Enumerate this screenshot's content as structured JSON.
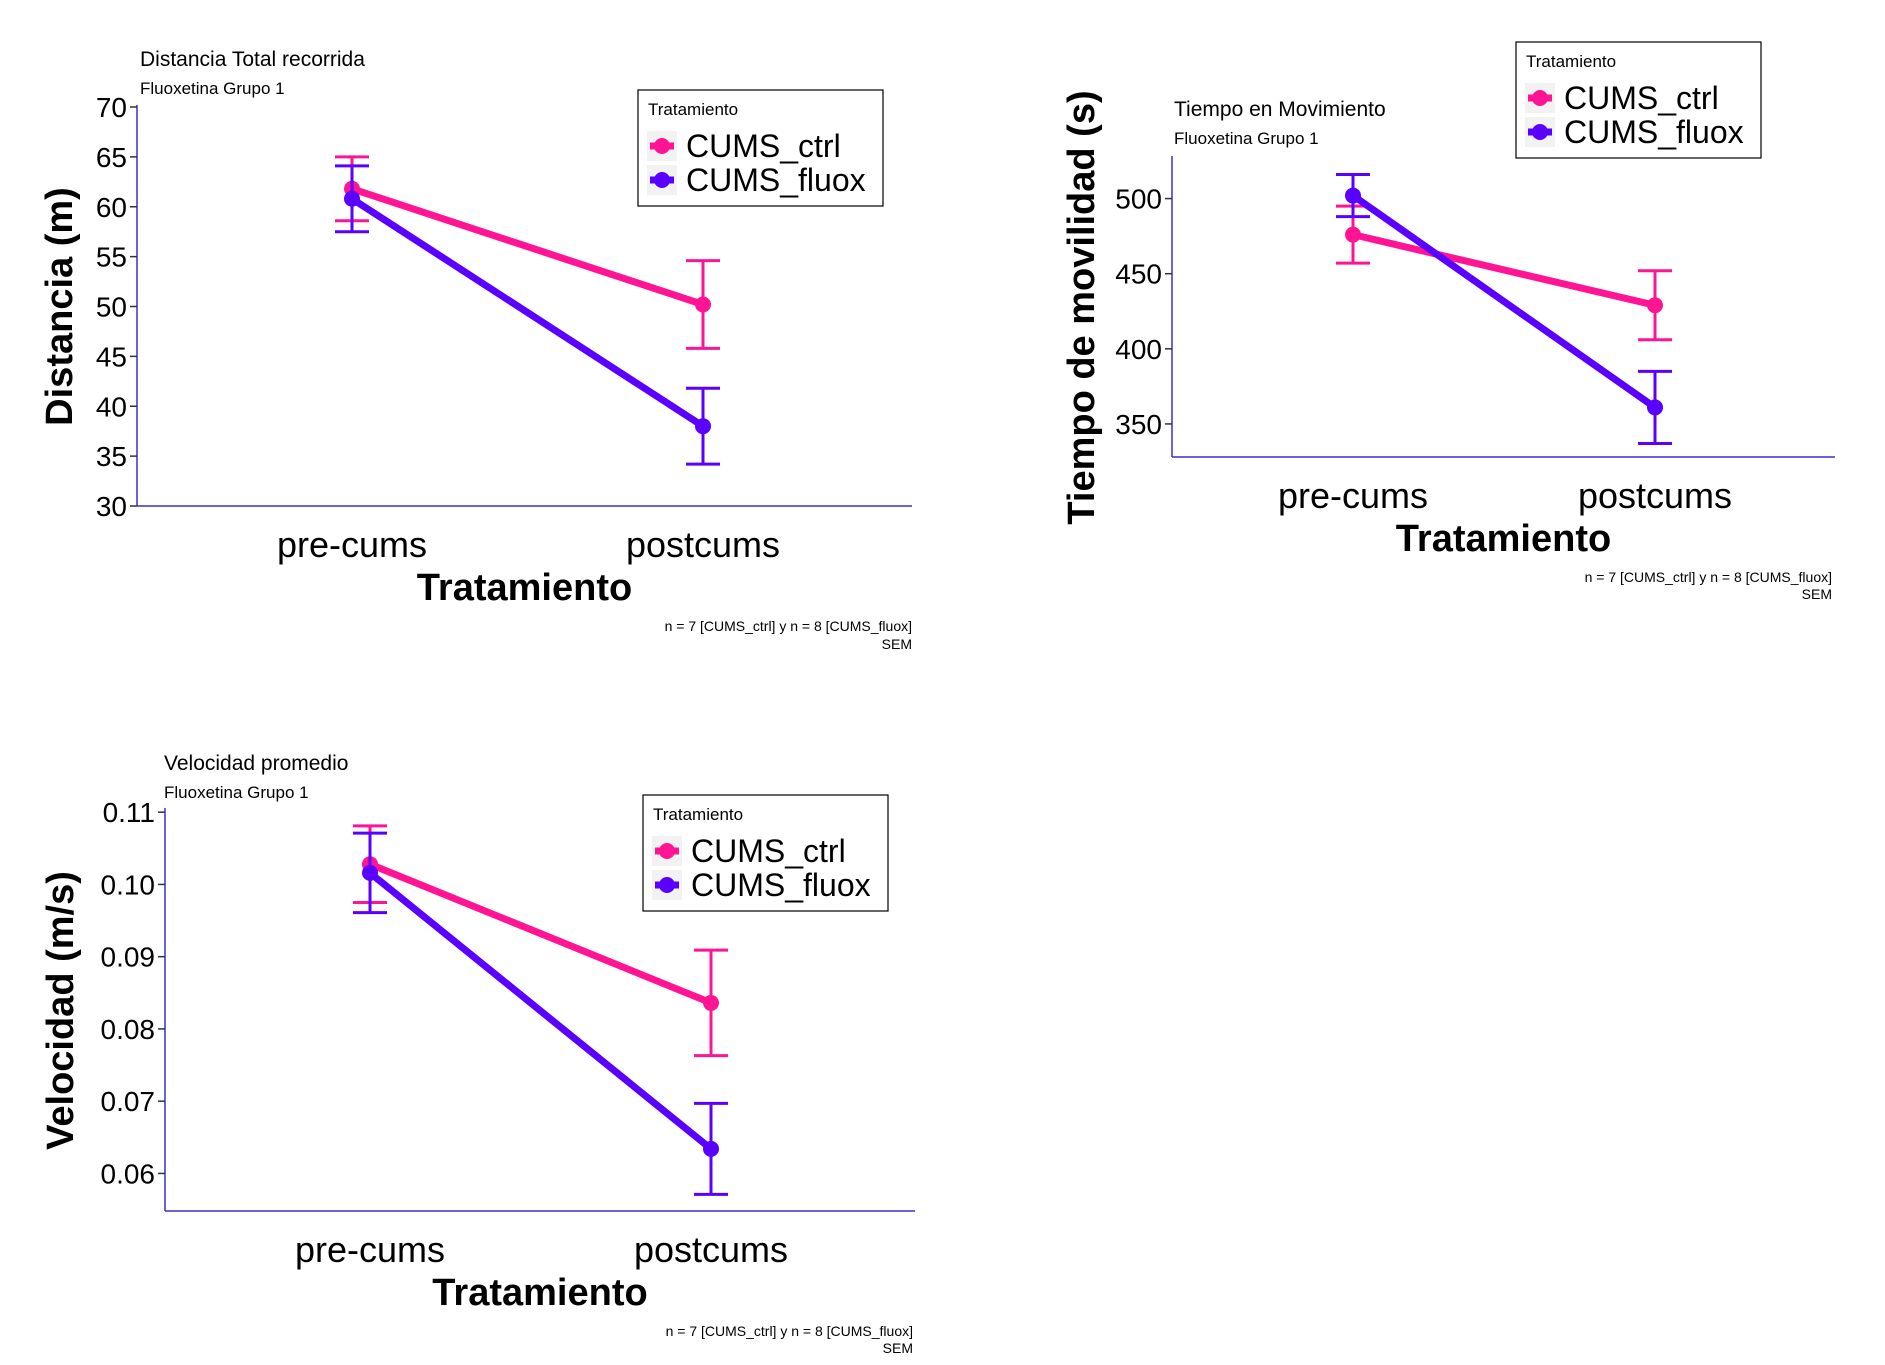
{
  "colors": {
    "ctrl": "#ff1493",
    "fluox": "#5a00ff",
    "axis": "#3c2fcf",
    "text": "#000000"
  },
  "chart_data": [
    {
      "type": "line",
      "title": "Distancia Total recorrida",
      "subtitle": "Fluoxetina Grupo 1",
      "xlabel": "Tratamiento",
      "ylabel": "Distancia (m)",
      "categories": [
        "pre-cums",
        "postcums"
      ],
      "ylim": [
        30,
        70
      ],
      "yticks": [
        30,
        35,
        40,
        45,
        50,
        55,
        60,
        65,
        70
      ],
      "ytick_labels": [
        "30",
        "35",
        "40",
        "45",
        "50",
        "55",
        "60",
        "65",
        "70"
      ],
      "legend": {
        "title": "Tratamiento",
        "position": "top-right"
      },
      "caption": [
        "n = 7  [CUMS_ctrl] y n = 8 [CUMS_fluox]",
        "SEM"
      ],
      "series": [
        {
          "name": "CUMS_ctrl",
          "color_key": "ctrl",
          "values": [
            61.8,
            50.2
          ],
          "sem": [
            3.2,
            4.4
          ]
        },
        {
          "name": "CUMS_fluox",
          "color_key": "fluox",
          "values": [
            60.8,
            38.0
          ],
          "sem": [
            3.3,
            3.8
          ]
        }
      ]
    },
    {
      "type": "line",
      "title": "Tiempo en Movimiento",
      "subtitle": "Fluoxetina Grupo 1",
      "xlabel": "Tratamiento",
      "ylabel": "Tiempo de movilidad (s)",
      "categories": [
        "pre-cums",
        "postcums"
      ],
      "ylim": [
        328,
        527
      ],
      "yticks": [
        350,
        400,
        450,
        500
      ],
      "ytick_labels": [
        "350",
        "400",
        "450",
        "500"
      ],
      "legend": {
        "title": "Tratamiento",
        "position": "top-right"
      },
      "caption": [
        "n = 7  [CUMS_ctrl] y n = 8 [CUMS_fluox]",
        "SEM"
      ],
      "series": [
        {
          "name": "CUMS_ctrl",
          "color_key": "ctrl",
          "values": [
            476,
            429
          ],
          "sem": [
            19,
            23
          ]
        },
        {
          "name": "CUMS_fluox",
          "color_key": "fluox",
          "values": [
            502,
            361
          ],
          "sem": [
            14,
            24
          ]
        }
      ]
    },
    {
      "type": "line",
      "title": "Velocidad promedio",
      "subtitle": "Fluoxetina Grupo 1",
      "xlabel": "Tratamiento",
      "ylabel": "Velocidad (m/s)",
      "categories": [
        "pre-cums",
        "postcums"
      ],
      "ylim": [
        0.0548,
        0.1103
      ],
      "yticks": [
        0.06,
        0.07,
        0.08,
        0.09,
        0.1,
        0.11
      ],
      "ytick_labels": [
        "0.06",
        "0.07",
        "0.08",
        "0.09",
        "0.10",
        "0.11"
      ],
      "legend": {
        "title": "Tratamiento",
        "position": "top-right"
      },
      "caption": [
        "n = 7  [CUMS_ctrl] y n = 8 [CUMS_fluox]",
        "SEM"
      ],
      "series": [
        {
          "name": "CUMS_ctrl",
          "color_key": "ctrl",
          "values": [
            0.1028,
            0.0836
          ],
          "sem": [
            0.0053,
            0.0073
          ]
        },
        {
          "name": "CUMS_fluox",
          "color_key": "fluox",
          "values": [
            0.1016,
            0.0634
          ],
          "sem": [
            0.0055,
            0.0063
          ]
        }
      ]
    }
  ]
}
